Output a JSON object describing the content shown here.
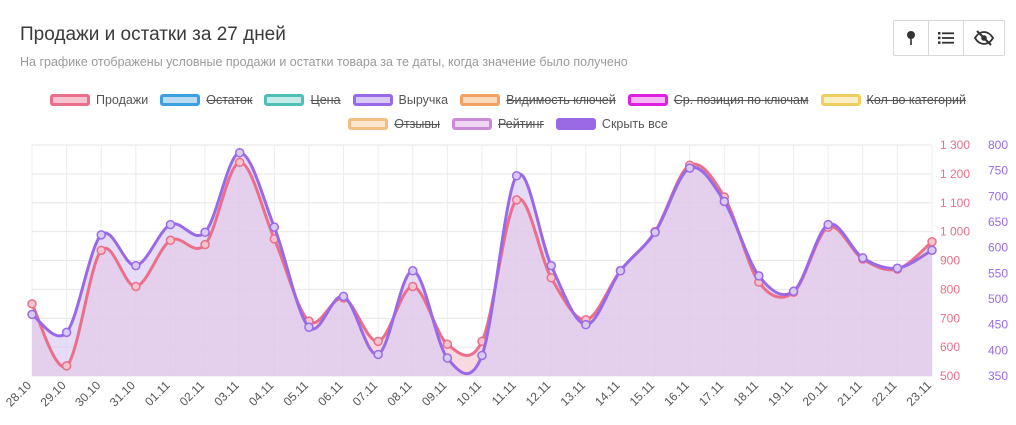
{
  "header": {
    "title": "Продажи и остатки за 27 дней",
    "subtitle": "На графике отображены условные продажи и остатки товара за те даты, когда значение было получено"
  },
  "toolbar": {
    "buttons": [
      {
        "icon": "pin-icon"
      },
      {
        "icon": "list-icon"
      },
      {
        "icon": "eye-slash-icon"
      }
    ]
  },
  "legend": {
    "items": [
      {
        "label": "Продажи",
        "color": "#ea6f8a",
        "fill": "#f6c4cf",
        "active": true
      },
      {
        "label": "Остаток",
        "color": "#3aa0e0",
        "fill": "#bcdcf3",
        "active": false
      },
      {
        "label": "Цена",
        "color": "#4fbfb5",
        "fill": "#c5ece8",
        "active": false
      },
      {
        "label": "Выручка",
        "color": "#9a6ae6",
        "fill": "#d9c9f5",
        "active": true
      },
      {
        "label": "Видимость ключей",
        "color": "#f0a060",
        "fill": "#fad9bd",
        "active": false
      },
      {
        "label": "Ср. позиция по ключам",
        "color": "#e020e0",
        "fill": "#f6b8f6",
        "active": false
      },
      {
        "label": "Кол-во категорий",
        "color": "#f0cf60",
        "fill": "#fbefc6",
        "active": false
      },
      {
        "label": "Отзывы",
        "color": "#f2be80",
        "fill": "#fbe6cf",
        "active": false
      },
      {
        "label": "Рейтинг",
        "color": "#c98ad8",
        "fill": "#eed6f3",
        "active": false
      },
      {
        "label": "Скрыть все",
        "color": "#9a6ae6",
        "fill": "#9a6ae6",
        "active": true
      }
    ]
  },
  "chart_data": {
    "type": "area",
    "categories": [
      "28.10",
      "29.10",
      "30.10",
      "31.10",
      "01.11",
      "02.11",
      "03.11",
      "04.11",
      "05.11",
      "06.11",
      "07.11",
      "08.11",
      "09.11",
      "10.11",
      "11.11",
      "12.11",
      "13.11",
      "14.11",
      "15.11",
      "16.11",
      "17.11",
      "18.11",
      "19.11",
      "20.11",
      "21.11",
      "22.11",
      "23.11"
    ],
    "series": [
      {
        "name": "Продажи",
        "axis": "left",
        "color": "#ea6f8a",
        "fill": "#f6c4cf",
        "values": [
          750,
          535,
          935,
          810,
          970,
          955,
          1240,
          975,
          690,
          770,
          620,
          810,
          610,
          620,
          1110,
          840,
          695,
          865,
          1000,
          1230,
          1120,
          825,
          790,
          1015,
          905,
          870,
          965
        ]
      },
      {
        "name": "Выручка",
        "axis": "right",
        "color": "#9a6ae6",
        "fill": "#d9c9f5",
        "values": [
          470,
          435,
          625,
          565,
          645,
          630,
          785,
          640,
          445,
          505,
          392,
          555,
          385,
          390,
          740,
          565,
          450,
          555,
          630,
          755,
          690,
          545,
          515,
          645,
          580,
          560,
          595
        ]
      }
    ],
    "left_axis": {
      "min": 500,
      "max": 1300,
      "ticks": [
        "500",
        "600",
        "700",
        "800",
        "900",
        "1 000",
        "1 100",
        "1 200",
        "1 300"
      ],
      "color": "#ea6f8a"
    },
    "right_axis": {
      "min": 350,
      "max": 800,
      "ticks": [
        "350",
        "400",
        "450",
        "500",
        "550",
        "600",
        "650",
        "700",
        "750",
        "800"
      ],
      "color": "#9a6ae6"
    },
    "grid": true
  }
}
